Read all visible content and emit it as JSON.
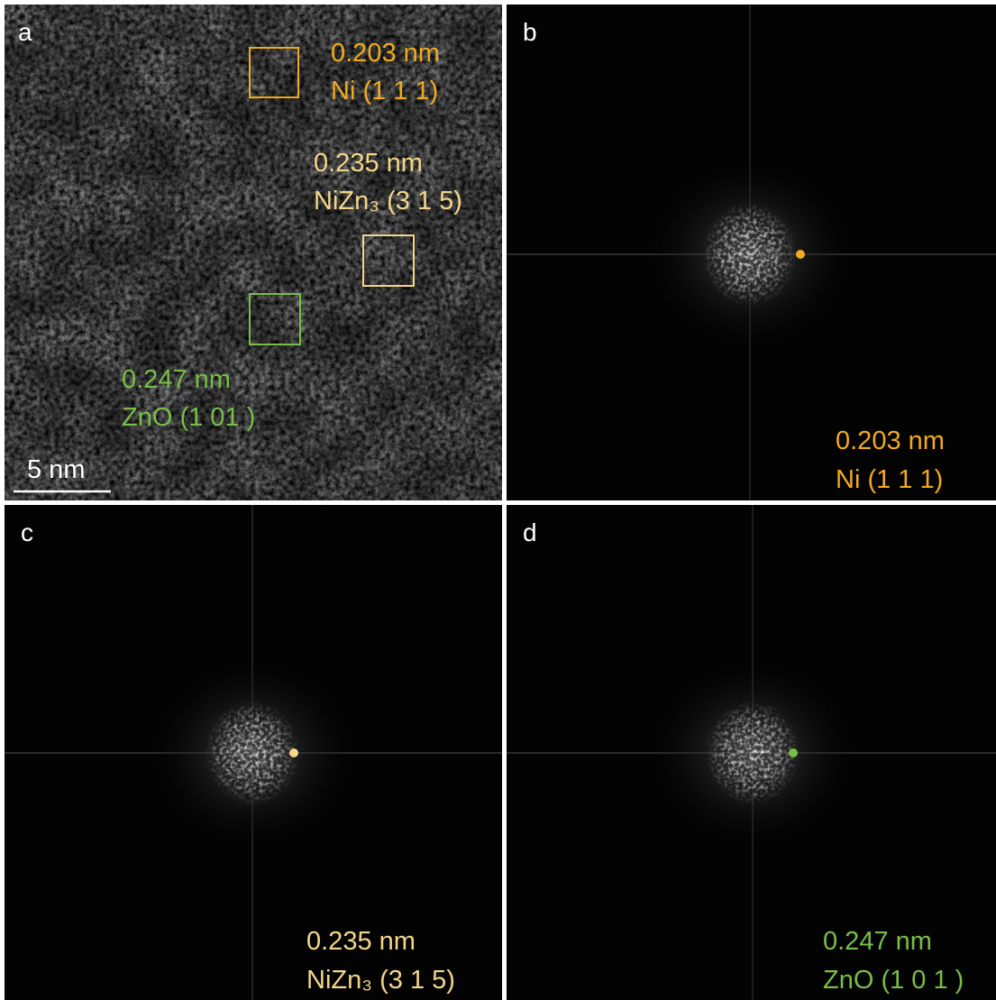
{
  "panels": [
    {
      "label": "a",
      "annotations": [
        {
          "spacing": "0.203 nm",
          "plane": "Ni (1 1 1)"
        },
        {
          "spacing": "0.235 nm",
          "plane": "NiZn₃ (3 1 5)"
        },
        {
          "spacing": "0.247 nm",
          "plane": "ZnO (1 01 )"
        }
      ],
      "scale_bar": "5 nm"
    },
    {
      "label": "b",
      "spacing": "0.203 nm",
      "plane": "Ni (1 1 1)"
    },
    {
      "label": "c",
      "spacing": "0.235 nm",
      "plane": "NiZn₃ (3 1 5)"
    },
    {
      "label": "d",
      "spacing": "0.247 nm",
      "plane": "ZnO (1 0 1 )"
    }
  ]
}
